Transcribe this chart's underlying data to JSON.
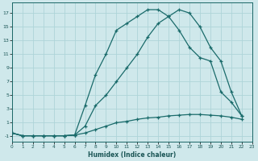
{
  "xlabel": "Humidex (Indice chaleur)",
  "bg_color": "#cfe8eb",
  "grid_color": "#b0d8dc",
  "line_color": "#1a6b6b",
  "xlim": [
    0,
    23
  ],
  "ylim": [
    -1.8,
    18.5
  ],
  "xticks": [
    0,
    1,
    2,
    3,
    4,
    5,
    6,
    7,
    8,
    9,
    10,
    11,
    12,
    13,
    14,
    15,
    16,
    17,
    18,
    19,
    20,
    21,
    22,
    23
  ],
  "yticks": [
    -1,
    1,
    3,
    5,
    7,
    9,
    11,
    13,
    15,
    17
  ],
  "line1_x": [
    0,
    1,
    2,
    3,
    4,
    5,
    6,
    7,
    8,
    9,
    10,
    11,
    12,
    13,
    14,
    15,
    16,
    17,
    18,
    19,
    20,
    21,
    22
  ],
  "line1_y": [
    -0.5,
    -0.9,
    -0.9,
    -0.9,
    -0.9,
    -0.9,
    -0.8,
    3.5,
    8.0,
    11.0,
    14.5,
    15.5,
    16.5,
    17.5,
    17.5,
    16.5,
    14.5,
    12.0,
    10.5,
    10.0,
    5.5,
    4.0,
    2.0
  ],
  "line2_x": [
    0,
    1,
    2,
    3,
    4,
    5,
    6,
    7,
    8,
    9,
    10,
    11,
    12,
    13,
    14,
    15,
    16,
    17,
    18,
    19,
    20,
    21,
    22
  ],
  "line2_y": [
    -0.5,
    -0.9,
    -0.9,
    -0.9,
    -0.9,
    -0.9,
    -0.8,
    0.5,
    3.5,
    5.0,
    7.0,
    9.0,
    11.0,
    13.5,
    15.5,
    16.5,
    17.5,
    17.0,
    15.0,
    12.0,
    10.0,
    5.5,
    2.0
  ],
  "line3_x": [
    0,
    1,
    2,
    3,
    4,
    5,
    6,
    7,
    8,
    9,
    10,
    11,
    12,
    13,
    14,
    15,
    16,
    17,
    18,
    19,
    20,
    21,
    22
  ],
  "line3_y": [
    -0.5,
    -0.9,
    -0.9,
    -0.9,
    -0.9,
    -0.9,
    -0.8,
    -0.5,
    0.0,
    0.5,
    1.0,
    1.2,
    1.5,
    1.7,
    1.8,
    2.0,
    2.1,
    2.2,
    2.2,
    2.1,
    2.0,
    1.8,
    1.5
  ]
}
